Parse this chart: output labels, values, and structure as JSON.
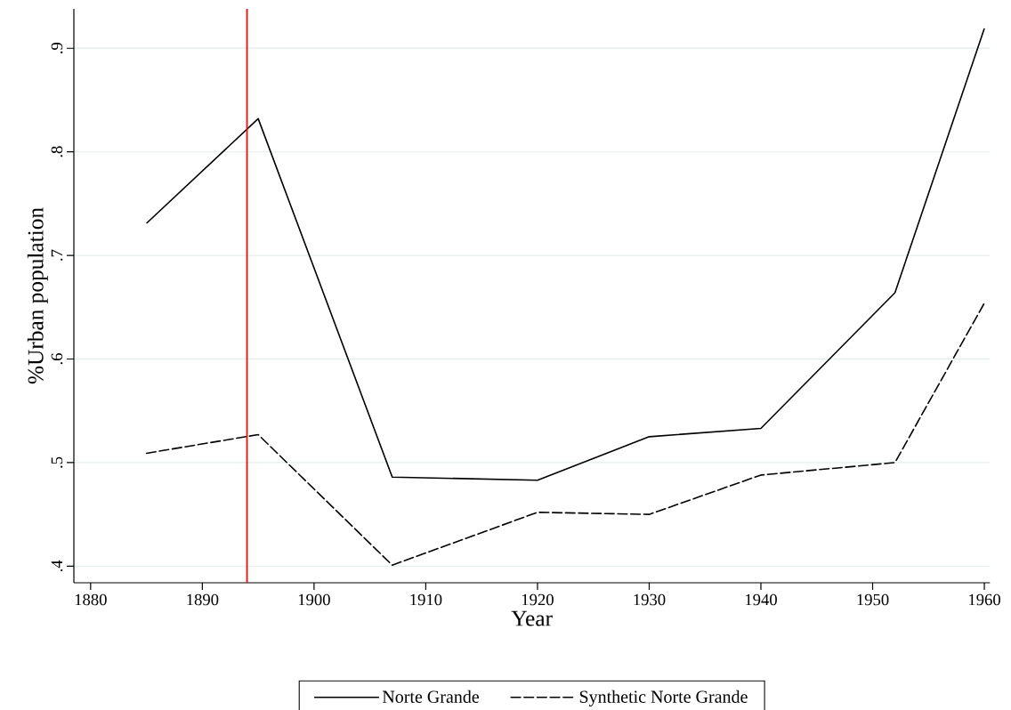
{
  "chart_data": {
    "type": "line",
    "xlabel": "Year",
    "ylabel": "%Urban population",
    "x": [
      1885,
      1895,
      1907,
      1920,
      1930,
      1940,
      1952,
      1960
    ],
    "series": [
      {
        "name": "Norte Grande",
        "color": "#000000",
        "line_style": "solid",
        "values": [
          0.731,
          0.832,
          0.486,
          0.483,
          0.525,
          0.533,
          0.664,
          0.919
        ]
      },
      {
        "name": "Synthetic Norte Grande",
        "color": "#000000",
        "line_style": "dashed",
        "values": [
          0.509,
          0.527,
          0.401,
          0.452,
          0.45,
          0.488,
          0.5,
          0.654
        ]
      }
    ],
    "xlim": [
      1878.5,
      1960.5
    ],
    "ylim": [
      0.384,
      0.938
    ],
    "xticks": [
      1880,
      1890,
      1900,
      1910,
      1920,
      1930,
      1940,
      1950,
      1960
    ],
    "yticks": [
      {
        "value": 0.4,
        "label": ".4"
      },
      {
        "value": 0.5,
        "label": ".5"
      },
      {
        "value": 0.6,
        "label": ".6"
      },
      {
        "value": 0.7,
        "label": ".7"
      },
      {
        "value": 0.8,
        "label": ".8"
      },
      {
        "value": 0.9,
        "label": ".9"
      }
    ],
    "ref_lines": [
      {
        "axis": "x",
        "value": 1894,
        "color": "#ff0000"
      }
    ],
    "grid": "y",
    "legend": "bottom",
    "marker": "none"
  }
}
